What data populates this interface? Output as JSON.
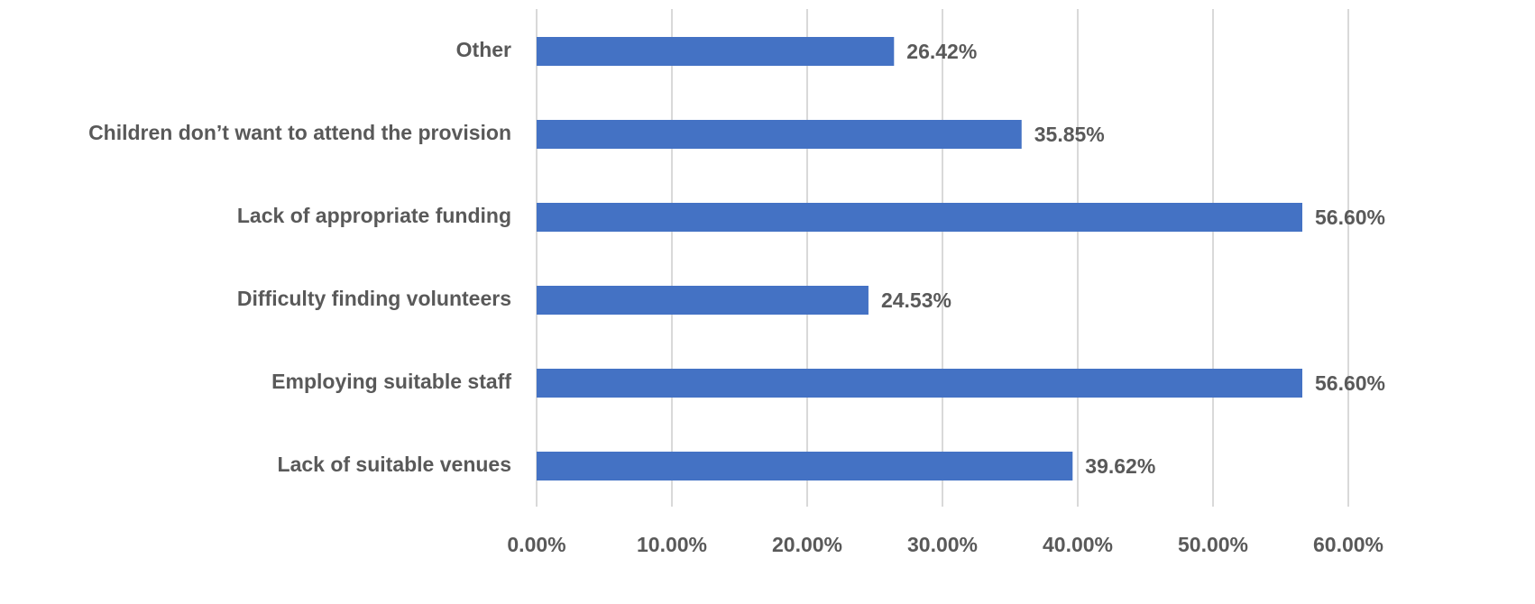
{
  "chart_data": {
    "type": "bar",
    "orientation": "horizontal",
    "categories": [
      "Other",
      "Children don’t want to attend the provision",
      "Lack of appropriate funding",
      "Difficulty finding volunteers",
      "Employing suitable staff",
      "Lack of suitable venues"
    ],
    "values": [
      26.42,
      35.85,
      56.6,
      24.53,
      56.6,
      39.62
    ],
    "value_labels": [
      "26.42%",
      "35.85%",
      "56.60%",
      "24.53%",
      "56.60%",
      "39.62%"
    ],
    "color": "#4472c4",
    "xlim": [
      0,
      60
    ],
    "xticks": [
      {
        "value": 0,
        "label": "0.00%"
      },
      {
        "value": 10,
        "label": "10.00%"
      },
      {
        "value": 20,
        "label": "20.00%"
      },
      {
        "value": 30,
        "label": "30.00%"
      },
      {
        "value": 40,
        "label": "40.00%"
      },
      {
        "value": 50,
        "label": "50.00%"
      },
      {
        "value": 60,
        "label": "60.00%"
      }
    ],
    "grid": true
  }
}
